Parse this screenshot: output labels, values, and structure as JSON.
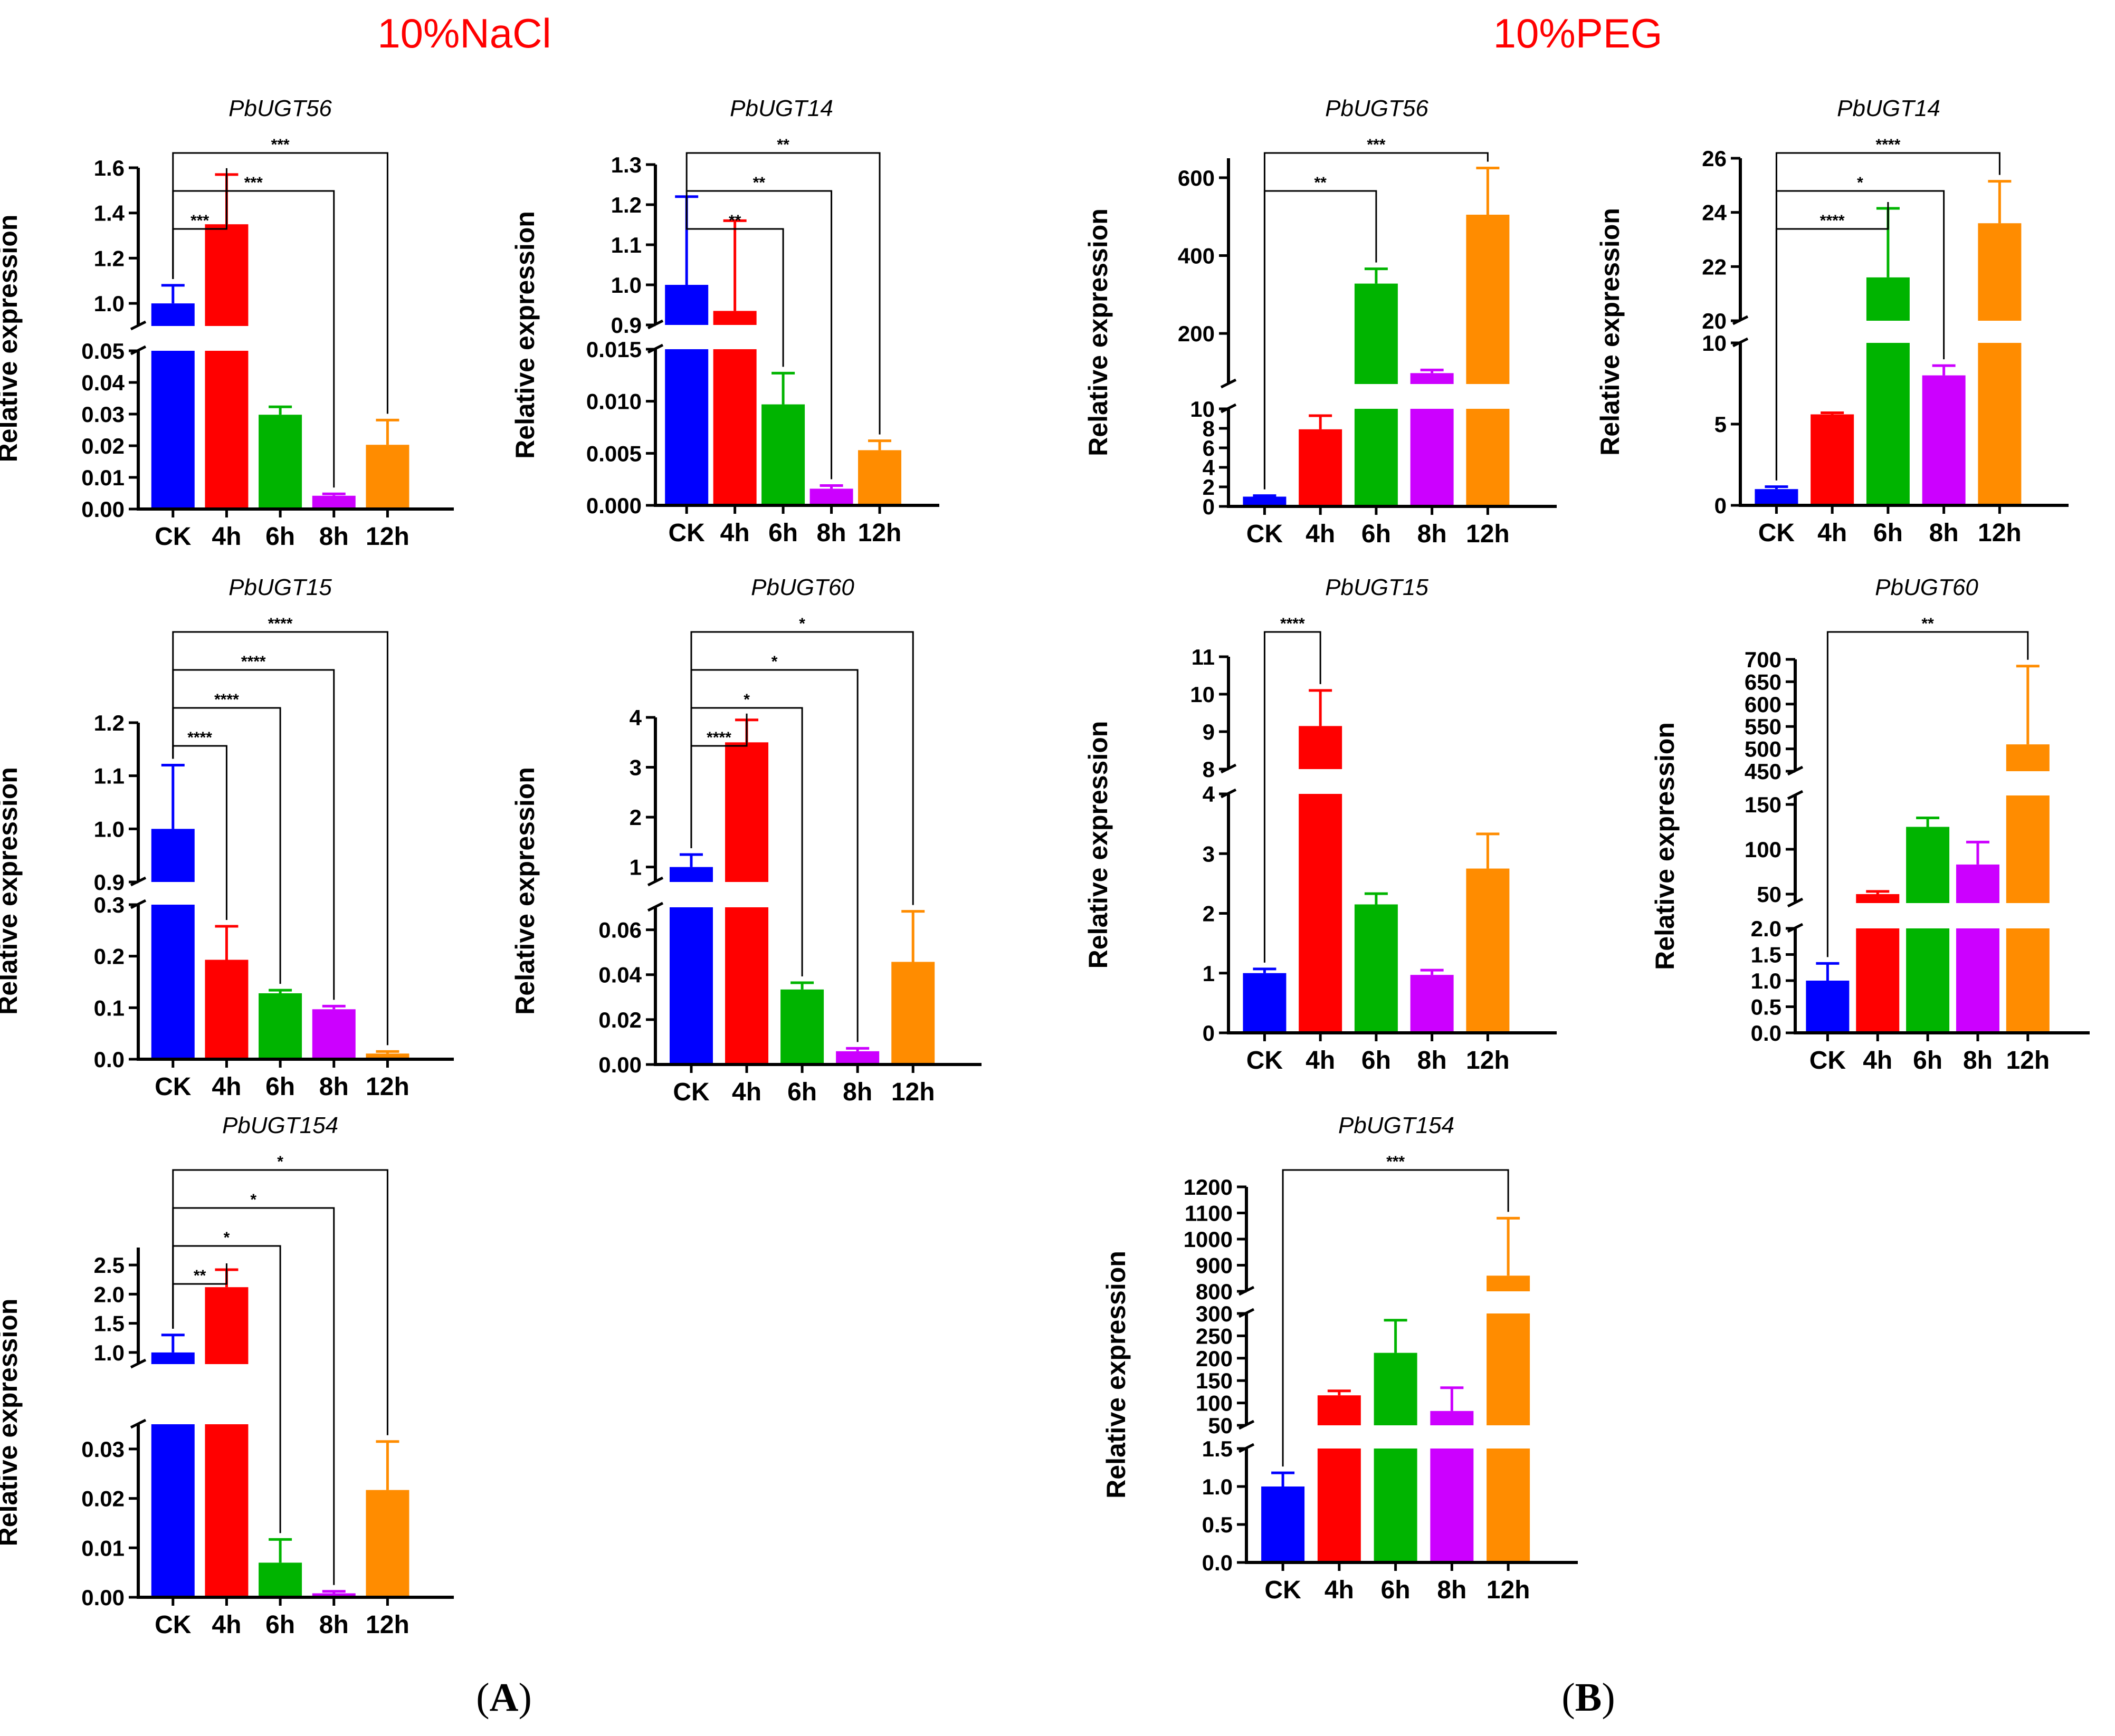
{
  "panels": [
    {
      "title": "10%NaCl",
      "letter": "A"
    },
    {
      "title": "10%PEG",
      "letter": "B"
    }
  ],
  "colors": {
    "CK": "#0000ff",
    "4h": "#ff0000",
    "6h": "#00b400",
    "8h": "#cc00ff",
    "12h": "#ff8c00"
  },
  "chart_data": [
    {
      "type": "bar",
      "panel": "10%NaCl",
      "title": "PbUGT56",
      "ylabel": "Relative expression",
      "categories": [
        "CK",
        "4h",
        "6h",
        "8h",
        "12h"
      ],
      "values": [
        1.0,
        1.35,
        0.0298,
        0.0042,
        0.0203
      ],
      "errors": [
        0.08,
        0.22,
        0.0025,
        0.0006,
        0.0078
      ],
      "segments": [
        {
          "range": [
            0,
            0.05
          ],
          "ticks": [
            "0.00",
            "0.01",
            "0.02",
            "0.03",
            "0.04",
            "0.05"
          ]
        },
        {
          "range": [
            0.9,
            1.6
          ],
          "ticks": [
            "1.0",
            "1.2",
            "1.4",
            "1.6"
          ]
        }
      ],
      "significance": [
        {
          "target": "4h",
          "label": "***"
        },
        {
          "target": "8h",
          "label": "***"
        },
        {
          "target": "12h",
          "label": "***"
        }
      ]
    },
    {
      "type": "bar",
      "panel": "10%NaCl",
      "title": "PbUGT14",
      "ylabel": "Relative expression",
      "categories": [
        "CK",
        "4h",
        "6h",
        "8h",
        "12h"
      ],
      "values": [
        1.0,
        0.935,
        0.0097,
        0.0016,
        0.0053
      ],
      "errors": [
        0.22,
        0.225,
        0.003,
        0.0003,
        0.0009
      ],
      "segments": [
        {
          "range": [
            0,
            0.015
          ],
          "ticks": [
            "0.000",
            "0.005",
            "0.010",
            "0.015"
          ]
        },
        {
          "range": [
            0.9,
            1.3
          ],
          "ticks": [
            "0.9",
            "1.0",
            "1.1",
            "1.2",
            "1.3"
          ]
        }
      ],
      "significance": [
        {
          "target": "6h",
          "label": "**"
        },
        {
          "target": "8h",
          "label": "**"
        },
        {
          "target": "12h",
          "label": "**"
        }
      ]
    },
    {
      "type": "bar",
      "panel": "10%NaCl",
      "title": "PbUGT15",
      "ylabel": "Relative expression",
      "categories": [
        "CK",
        "4h",
        "6h",
        "8h",
        "12h"
      ],
      "values": [
        1.0,
        0.193,
        0.128,
        0.097,
        0.011
      ],
      "errors": [
        0.12,
        0.065,
        0.006,
        0.006,
        0.004
      ],
      "segments": [
        {
          "range": [
            0,
            0.3
          ],
          "ticks": [
            "0.0",
            "0.1",
            "0.2",
            "0.3"
          ]
        },
        {
          "range": [
            0.9,
            1.2
          ],
          "ticks": [
            "0.9",
            "1.0",
            "1.1",
            "1.2"
          ]
        }
      ],
      "significance": [
        {
          "target": "4h",
          "label": "****"
        },
        {
          "target": "6h",
          "label": "****"
        },
        {
          "target": "8h",
          "label": "****"
        },
        {
          "target": "12h",
          "label": "****"
        }
      ]
    },
    {
      "type": "bar",
      "panel": "10%NaCl",
      "title": "PbUGT60",
      "ylabel": "Relative expression",
      "categories": [
        "CK",
        "4h",
        "6h",
        "8h",
        "12h"
      ],
      "values": [
        1.0,
        3.5,
        0.0334,
        0.0059,
        0.0457
      ],
      "errors": [
        0.25,
        0.45,
        0.003,
        0.0013,
        0.0225
      ],
      "segments": [
        {
          "range": [
            0,
            0.07
          ],
          "ticks": [
            "0.00",
            "0.02",
            "0.04",
            "0.06"
          ]
        },
        {
          "range": [
            0.7,
            4.0
          ],
          "ticks": [
            "1",
            "2",
            "3",
            "4"
          ]
        }
      ],
      "significance": [
        {
          "target": "4h",
          "label": "****"
        },
        {
          "target": "6h",
          "label": "*"
        },
        {
          "target": "8h",
          "label": "*"
        },
        {
          "target": "12h",
          "label": "*"
        }
      ]
    },
    {
      "type": "bar",
      "panel": "10%NaCl",
      "title": "PbUGT154",
      "ylabel": "Relative expression",
      "categories": [
        "CK",
        "4h",
        "6h",
        "8h",
        "12h"
      ],
      "values": [
        1.0,
        2.12,
        0.007,
        0.0008,
        0.0217
      ],
      "errors": [
        0.3,
        0.3,
        0.0047,
        0.0004,
        0.0098
      ],
      "segments": [
        {
          "range": [
            0,
            0.035
          ],
          "ticks": [
            "0.00",
            "0.01",
            "0.02",
            "0.03"
          ]
        },
        {
          "range": [
            0.8,
            2.8
          ],
          "ticks": [
            "1.0",
            "1.5",
            "2.0",
            "2.5"
          ]
        }
      ],
      "significance": [
        {
          "target": "4h",
          "label": "**"
        },
        {
          "target": "6h",
          "label": "*"
        },
        {
          "target": "8h",
          "label": "*"
        },
        {
          "target": "12h",
          "label": "*"
        }
      ]
    },
    {
      "type": "bar",
      "panel": "10%PEG",
      "title": "PbUGT56",
      "ylabel": "Relative expression",
      "categories": [
        "CK",
        "4h",
        "6h",
        "8h",
        "12h"
      ],
      "values": [
        1.0,
        7.9,
        328,
        98,
        505
      ],
      "errors": [
        0.1,
        1.4,
        38,
        8,
        120
      ],
      "segments": [
        {
          "range": [
            0,
            10
          ],
          "ticks": [
            "0",
            "2",
            "4",
            "6",
            "8",
            "10"
          ]
        },
        {
          "range": [
            70,
            650
          ],
          "ticks": [
            "200",
            "400",
            "600"
          ]
        }
      ],
      "significance": [
        {
          "target": "6h",
          "label": "**"
        },
        {
          "target": "12h",
          "label": "***"
        }
      ]
    },
    {
      "type": "bar",
      "panel": "10%PEG",
      "title": "PbUGT14",
      "ylabel": "Relative expression",
      "categories": [
        "CK",
        "4h",
        "6h",
        "8h",
        "12h"
      ],
      "values": [
        1.0,
        5.6,
        21.6,
        8.0,
        23.6
      ],
      "errors": [
        0.15,
        0.1,
        2.55,
        0.6,
        1.55
      ],
      "segments": [
        {
          "range": [
            0,
            10
          ],
          "ticks": [
            "0",
            "5",
            "10"
          ]
        },
        {
          "range": [
            20,
            26
          ],
          "ticks": [
            "20",
            "22",
            "24",
            "26"
          ]
        }
      ],
      "significance": [
        {
          "target": "6h",
          "label": "****"
        },
        {
          "target": "8h",
          "label": "*"
        },
        {
          "target": "12h",
          "label": "****"
        }
      ]
    },
    {
      "type": "bar",
      "panel": "10%PEG",
      "title": "PbUGT15",
      "ylabel": "Relative expression",
      "categories": [
        "CK",
        "4h",
        "6h",
        "8h",
        "12h"
      ],
      "values": [
        1.0,
        9.15,
        2.15,
        0.97,
        2.75
      ],
      "errors": [
        0.07,
        0.95,
        0.18,
        0.08,
        0.58
      ],
      "segments": [
        {
          "range": [
            0,
            4
          ],
          "ticks": [
            "0",
            "1",
            "2",
            "3",
            "4"
          ]
        },
        {
          "range": [
            8,
            11
          ],
          "ticks": [
            "8",
            "9",
            "10",
            "11"
          ]
        }
      ],
      "significance": [
        {
          "target": "4h",
          "label": "****"
        }
      ]
    },
    {
      "type": "bar",
      "panel": "10%PEG",
      "title": "PbUGT60",
      "ylabel": "Relative expression",
      "categories": [
        "CK",
        "4h",
        "6h",
        "8h",
        "12h"
      ],
      "values": [
        1.0,
        50,
        125,
        83,
        510
      ],
      "errors": [
        0.33,
        3,
        10,
        25,
        175
      ],
      "segments": [
        {
          "range": [
            0,
            2.0
          ],
          "ticks": [
            "0.0",
            "0.5",
            "1.0",
            "1.5",
            "2.0"
          ]
        },
        {
          "range": [
            40,
            160
          ],
          "ticks": [
            "50",
            "100",
            "150"
          ]
        },
        {
          "range": [
            450,
            700
          ],
          "ticks": [
            "450",
            "500",
            "550",
            "600",
            "650",
            "700"
          ]
        }
      ],
      "significance": [
        {
          "target": "12h",
          "label": "**"
        }
      ]
    },
    {
      "type": "bar",
      "panel": "10%PEG",
      "title": "PbUGT154",
      "ylabel": "Relative expression",
      "categories": [
        "CK",
        "4h",
        "6h",
        "8h",
        "12h"
      ],
      "values": [
        1.0,
        117,
        212,
        82,
        860
      ],
      "errors": [
        0.18,
        10,
        73,
        52,
        220
      ],
      "segments": [
        {
          "range": [
            0,
            1.5
          ],
          "ticks": [
            "0.0",
            "0.5",
            "1.0",
            "1.5"
          ]
        },
        {
          "range": [
            50,
            300
          ],
          "ticks": [
            "50",
            "100",
            "150",
            "200",
            "250",
            "300"
          ]
        },
        {
          "range": [
            800,
            1200
          ],
          "ticks": [
            "800",
            "900",
            "1000",
            "1100",
            "1200"
          ]
        }
      ],
      "significance": [
        {
          "target": "12h",
          "label": "***"
        }
      ]
    }
  ]
}
